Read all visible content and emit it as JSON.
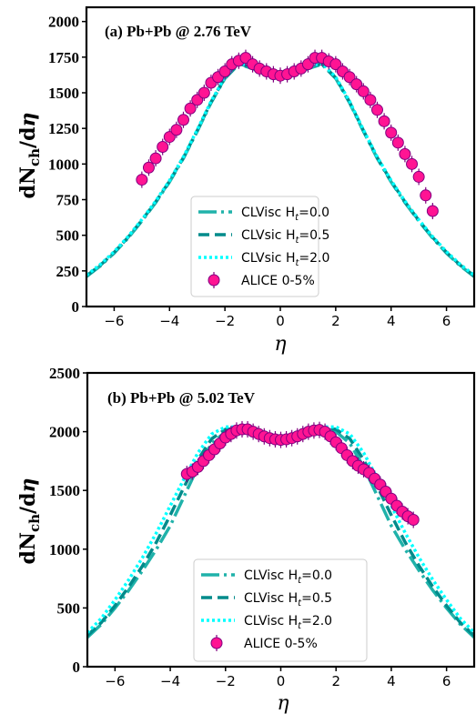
{
  "colors": {
    "h0": "#20b2aa",
    "h05": "#008b8b",
    "h20": "#00ffff",
    "alice_fill": "#ff1493",
    "alice_edge": "#800080"
  },
  "chart_data": [
    {
      "type": "line",
      "title": "(a) Pb+Pb @ 2.76 TeV",
      "xlabel": "η",
      "ylabel": "dN_ch/dη",
      "xlim": [
        -7,
        7
      ],
      "ylim": [
        0,
        2100
      ],
      "xticks": [
        "−6",
        "−4",
        "−2",
        "0",
        "2",
        "4",
        "6"
      ],
      "yticks": [
        "0",
        "250",
        "500",
        "750",
        "1000",
        "1250",
        "1500",
        "1750",
        "2000"
      ],
      "legend_position": "lower-center",
      "series": [
        {
          "name": "CLVisc H_t=0.0",
          "label_prefix": "CLVisc H",
          "label_suffix": "=0.0",
          "style": "dashdot",
          "x": [
            -7,
            -6.5,
            -6,
            -5.5,
            -5,
            -4.5,
            -4,
            -3.5,
            -3,
            -2.5,
            -2,
            -1.5,
            -1,
            -0.5,
            0,
            0.5,
            1,
            1.5,
            2,
            2.5,
            3,
            3.5,
            4,
            4.5,
            5,
            5.5,
            6,
            6.5,
            7
          ],
          "y": [
            210,
            285,
            375,
            480,
            600,
            730,
            875,
            1040,
            1230,
            1430,
            1600,
            1700,
            1670,
            1625,
            1615,
            1625,
            1670,
            1700,
            1600,
            1430,
            1230,
            1040,
            875,
            730,
            600,
            480,
            375,
            285,
            210
          ]
        },
        {
          "name": "CLVsic H_t=0.5",
          "label_prefix": "CLVsic H",
          "label_suffix": "=0.5",
          "style": "dashed",
          "x": [
            -7,
            -6.5,
            -6,
            -5.5,
            -5,
            -4.5,
            -4,
            -3.5,
            -3,
            -2.5,
            -2,
            -1.5,
            -1,
            -0.5,
            0,
            0.5,
            1,
            1.5,
            2,
            2.5,
            3,
            3.5,
            4,
            4.5,
            5,
            5.5,
            6,
            6.5,
            7
          ],
          "y": [
            215,
            290,
            380,
            485,
            605,
            735,
            880,
            1045,
            1235,
            1435,
            1605,
            1705,
            1675,
            1630,
            1620,
            1630,
            1675,
            1705,
            1605,
            1435,
            1235,
            1045,
            880,
            735,
            605,
            485,
            380,
            290,
            215
          ]
        },
        {
          "name": "CLVsic H_t=2.0",
          "label_prefix": "CLVsic H",
          "label_suffix": "=2.0",
          "style": "dotted",
          "x": [
            -7,
            -6.5,
            -6,
            -5.5,
            -5,
            -4.5,
            -4,
            -3.5,
            -3,
            -2.5,
            -2,
            -1.5,
            -1,
            -0.5,
            0,
            0.5,
            1,
            1.5,
            2,
            2.5,
            3,
            3.5,
            4,
            4.5,
            5,
            5.5,
            6,
            6.5,
            7
          ],
          "y": [
            220,
            295,
            385,
            490,
            610,
            740,
            885,
            1050,
            1240,
            1440,
            1610,
            1710,
            1680,
            1635,
            1625,
            1635,
            1680,
            1710,
            1610,
            1440,
            1240,
            1050,
            885,
            740,
            610,
            490,
            385,
            295,
            220
          ]
        },
        {
          "name": "ALICE 0-5%",
          "style": "markers",
          "x": [
            -5.0,
            -4.75,
            -4.5,
            -4.25,
            -4.0,
            -3.75,
            -3.5,
            -3.25,
            -3.0,
            -2.75,
            -2.5,
            -2.25,
            -2.0,
            -1.75,
            -1.5,
            -1.25,
            -1.0,
            -0.75,
            -0.5,
            -0.25,
            0.0,
            0.25,
            0.5,
            0.75,
            1.0,
            1.25,
            1.5,
            1.75,
            2.0,
            2.25,
            2.5,
            2.75,
            3.0,
            3.25,
            3.5,
            3.75,
            4.0,
            4.25,
            4.5,
            4.75,
            5.0,
            5.25,
            5.5
          ],
          "y": [
            890,
            975,
            1040,
            1120,
            1190,
            1240,
            1310,
            1390,
            1450,
            1500,
            1570,
            1610,
            1650,
            1700,
            1725,
            1745,
            1700,
            1670,
            1650,
            1630,
            1620,
            1630,
            1650,
            1670,
            1700,
            1745,
            1745,
            1720,
            1700,
            1650,
            1610,
            1560,
            1510,
            1450,
            1380,
            1300,
            1220,
            1150,
            1070,
            1000,
            910,
            780,
            670
          ]
        }
      ]
    },
    {
      "type": "line",
      "title": "(b) Pb+Pb @ 5.02 TeV",
      "xlabel": "η",
      "ylabel": "dN_ch/dη",
      "xlim": [
        -7,
        7
      ],
      "ylim": [
        0,
        2500
      ],
      "xticks": [
        "−6",
        "−4",
        "−2",
        "0",
        "2",
        "4",
        "6"
      ],
      "yticks": [
        "0",
        "500",
        "1000",
        "1500",
        "2000",
        "2500"
      ],
      "legend_position": "lower-center",
      "series": [
        {
          "name": "CLVisc H_t=0.0",
          "label_prefix": "CLVisc H",
          "label_suffix": "=0.0",
          "style": "dashdot",
          "x": [
            -7,
            -6.5,
            -6,
            -5.5,
            -5,
            -4.5,
            -4,
            -3.5,
            -3,
            -2.5,
            -2,
            -1.5,
            -1,
            -0.5,
            0,
            0.5,
            1,
            1.5,
            2,
            2.5,
            3,
            3.5,
            4,
            4.5,
            5,
            5.5,
            6,
            6.5,
            7
          ],
          "y": [
            250,
            360,
            500,
            650,
            820,
            1000,
            1200,
            1450,
            1700,
            1900,
            2000,
            2020,
            1980,
            1940,
            1930,
            1940,
            1980,
            2020,
            2000,
            1900,
            1700,
            1450,
            1200,
            1000,
            820,
            650,
            500,
            360,
            250
          ]
        },
        {
          "name": "CLVisc H_t=0.5",
          "label_prefix": "CLVisc H",
          "label_suffix": "=0.5",
          "style": "dashed",
          "x": [
            -7,
            -6.5,
            -6,
            -5.5,
            -5,
            -4.5,
            -4,
            -3.5,
            -3,
            -2.5,
            -2,
            -1.5,
            -1,
            -0.5,
            0,
            0.5,
            1,
            1.5,
            2,
            2.5,
            3,
            3.5,
            4,
            4.5,
            5,
            5.5,
            6,
            6.5,
            7
          ],
          "y": [
            265,
            375,
            520,
            680,
            860,
            1060,
            1290,
            1530,
            1760,
            1940,
            2020,
            2030,
            1990,
            1945,
            1935,
            1945,
            1990,
            2030,
            2020,
            1940,
            1760,
            1530,
            1290,
            1060,
            860,
            680,
            520,
            375,
            265
          ]
        },
        {
          "name": "CLVisc H_t=2.0",
          "label_prefix": "CLVisc H",
          "label_suffix": "=2.0",
          "style": "dotted",
          "x": [
            -7,
            -6.5,
            -6,
            -5.5,
            -5,
            -4.5,
            -4,
            -3.5,
            -3,
            -2.5,
            -2,
            -1.5,
            -1,
            -0.5,
            0,
            0.5,
            1,
            1.5,
            2,
            2.5,
            3,
            3.5,
            4,
            4.5,
            5,
            5.5,
            6,
            6.5,
            7
          ],
          "y": [
            290,
            410,
            570,
            740,
            930,
            1140,
            1370,
            1600,
            1820,
            1980,
            2040,
            2040,
            2000,
            1950,
            1940,
            1950,
            2000,
            2040,
            2040,
            1980,
            1820,
            1600,
            1370,
            1140,
            930,
            740,
            570,
            410,
            290
          ]
        },
        {
          "name": "ALICE 0-5%",
          "style": "markers",
          "x": [
            -3.4,
            -3.2,
            -3.0,
            -2.8,
            -2.6,
            -2.4,
            -2.2,
            -2.0,
            -1.8,
            -1.6,
            -1.4,
            -1.2,
            -1.0,
            -0.8,
            -0.6,
            -0.4,
            -0.2,
            0.0,
            0.2,
            0.4,
            0.6,
            0.8,
            1.0,
            1.2,
            1.4,
            1.6,
            1.8,
            2.0,
            2.2,
            2.4,
            2.6,
            2.8,
            3.0,
            3.2,
            3.4,
            3.6,
            3.8,
            4.0,
            4.2,
            4.4,
            4.6,
            4.8
          ],
          "y": [
            1640,
            1660,
            1700,
            1750,
            1800,
            1850,
            1900,
            1950,
            1980,
            2010,
            2020,
            2020,
            2000,
            1980,
            1960,
            1945,
            1935,
            1930,
            1935,
            1945,
            1960,
            1980,
            2000,
            2010,
            2015,
            2000,
            1960,
            1910,
            1860,
            1800,
            1750,
            1710,
            1680,
            1650,
            1600,
            1550,
            1490,
            1430,
            1370,
            1320,
            1280,
            1250
          ]
        }
      ]
    }
  ]
}
